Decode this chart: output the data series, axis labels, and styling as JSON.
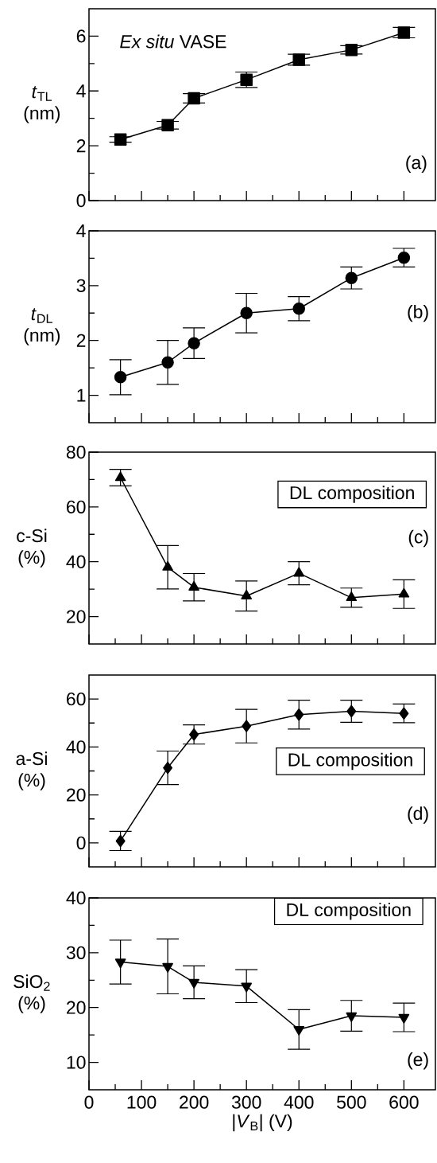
{
  "chart_data": [
    {
      "type": "line",
      "ylabel": "*t*$_{TL}$ (nm)",
      "x": [
        60,
        150,
        200,
        300,
        400,
        500,
        600
      ],
      "values": [
        2.23,
        2.75,
        3.73,
        4.41,
        5.14,
        5.5,
        6.13
      ],
      "errors": [
        0.1,
        0.14,
        0.17,
        0.28,
        0.2,
        0.15,
        0.19
      ],
      "color": "#000000",
      "marker": "square",
      "line_style": "solid",
      "xlim": [
        0,
        660
      ],
      "xticks": [
        0,
        100,
        200,
        300,
        400,
        500,
        600
      ],
      "ylim": [
        0,
        7
      ],
      "yticks": [
        0,
        2,
        4,
        6
      ],
      "tick_labels": "y",
      "grid": false,
      "annotations": [
        "*Ex situ* VASE",
        "(a)"
      ]
    },
    {
      "type": "line",
      "ylabel": "*t*$_{DL}$ (nm)",
      "x": [
        60,
        150,
        200,
        300,
        400,
        500,
        600
      ],
      "values": [
        1.33,
        1.6,
        1.95,
        2.5,
        2.58,
        3.14,
        3.51
      ],
      "errors": [
        0.32,
        0.4,
        0.28,
        0.36,
        0.22,
        0.2,
        0.17
      ],
      "color": "#000000",
      "marker": "circle",
      "line_style": "solid",
      "xlim": [
        0,
        660
      ],
      "xticks": [
        0,
        100,
        200,
        300,
        400,
        500,
        600
      ],
      "ylim": [
        0.5,
        4
      ],
      "yticks": [
        1,
        2,
        3,
        4
      ],
      "tick_labels": "y",
      "grid": false,
      "annotations": [
        "(b)"
      ]
    },
    {
      "type": "line",
      "ylabel": "c-Si (%)",
      "x": [
        60,
        150,
        200,
        300,
        400,
        500,
        600
      ],
      "values": [
        70.7,
        38,
        30.7,
        27.5,
        35.8,
        26.9,
        28.2
      ],
      "errors": [
        3,
        7.9,
        5,
        5.5,
        4.2,
        3.5,
        5.2
      ],
      "color": "#000000",
      "marker": "triangle",
      "line_style": "solid",
      "xlim": [
        0,
        660
      ],
      "xticks": [
        0,
        100,
        200,
        300,
        400,
        500,
        600
      ],
      "ylim": [
        10,
        80
      ],
      "yticks": [
        20,
        40,
        60,
        80
      ],
      "tick_labels": "y",
      "grid": false,
      "annotations": [
        "DL composition",
        "(c)"
      ]
    },
    {
      "type": "line",
      "ylabel": "a-Si (%)",
      "x": [
        60,
        150,
        200,
        300,
        400,
        500,
        600
      ],
      "values": [
        0.8,
        31.3,
        45.2,
        48.7,
        53.5,
        54.9,
        54
      ],
      "errors": [
        4,
        7,
        4,
        7,
        6,
        4.6,
        3.9
      ],
      "color": "#000000",
      "marker": "diamond",
      "line_style": "solid",
      "xlim": [
        0,
        660
      ],
      "xticks": [
        0,
        100,
        200,
        300,
        400,
        500,
        600
      ],
      "ylim": [
        -10,
        70
      ],
      "yticks": [
        0,
        20,
        40,
        60
      ],
      "tick_labels": "y",
      "grid": false,
      "annotations": [
        "DL composition",
        "(d)"
      ]
    },
    {
      "type": "line",
      "ylabel": "SiO$_{2}$ (%)",
      "xlabel": "|*V*$_{B}$| (V)",
      "x": [
        60,
        150,
        200,
        300,
        400,
        500,
        600
      ],
      "values": [
        28.3,
        27.5,
        24.6,
        23.9,
        16,
        18.5,
        18.2
      ],
      "errors": [
        4,
        5,
        3,
        3,
        3.6,
        2.8,
        2.6
      ],
      "color": "#000000",
      "marker": "triangle down",
      "line_style": "solid",
      "xlim": [
        0,
        660
      ],
      "xticks": [
        0,
        100,
        200,
        300,
        400,
        500,
        600
      ],
      "ylim": [
        5,
        40
      ],
      "yticks": [
        10,
        20,
        30,
        40
      ],
      "grid": false,
      "annotations": [
        "DL composition",
        "(e)"
      ]
    }
  ]
}
